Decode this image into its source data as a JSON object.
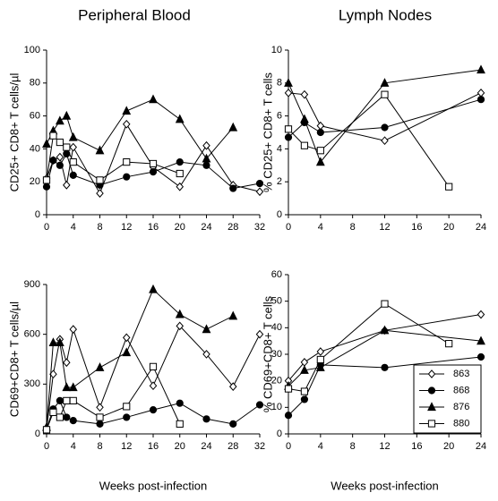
{
  "chart_data": [
    {
      "type": "line",
      "title": "Peripheral Blood",
      "ylabel": "CD25+ CD8+ T cells/µl",
      "xlim": [
        0,
        32
      ],
      "xticks": [
        0,
        4,
        8,
        12,
        16,
        20,
        24,
        28,
        32
      ],
      "ylim": [
        0,
        100
      ],
      "yticks": [
        0,
        20,
        40,
        60,
        80,
        100
      ],
      "series": [
        {
          "name": "863",
          "color": "#000000",
          "marker": "diamond-open",
          "x": [
            0,
            1,
            2,
            3,
            4,
            8,
            12,
            16,
            20,
            24,
            28,
            32
          ],
          "values": [
            22,
            33,
            35,
            18,
            41,
            13,
            55,
            29,
            17,
            42,
            18,
            14
          ]
        },
        {
          "name": "868",
          "color": "#000000",
          "marker": "circle-filled",
          "x": [
            0,
            1,
            2,
            3,
            4,
            8,
            12,
            16,
            20,
            24,
            28,
            32
          ],
          "values": [
            17,
            33,
            30,
            37,
            24,
            18,
            23,
            26,
            32,
            30,
            16,
            19
          ]
        },
        {
          "name": "876",
          "color": "#000000",
          "marker": "triangle-filled",
          "x": [
            0,
            1,
            2,
            3,
            4,
            8,
            12,
            16,
            20,
            24,
            28
          ],
          "values": [
            43,
            51,
            57,
            60,
            47,
            39,
            63,
            70,
            58,
            34,
            53
          ]
        },
        {
          "name": "880",
          "color": "#000000",
          "marker": "square-open",
          "x": [
            0,
            1,
            2,
            3,
            4,
            8,
            12,
            16,
            20
          ],
          "values": [
            21,
            48,
            44,
            41,
            32,
            21,
            32,
            31,
            25
          ]
        }
      ]
    },
    {
      "type": "line",
      "title": "Lymph Nodes",
      "ylabel": "% CD25+ CD8+ T cells",
      "xlim": [
        0,
        24
      ],
      "xticks": [
        0,
        4,
        8,
        12,
        16,
        20,
        24
      ],
      "ylim": [
        0,
        10
      ],
      "yticks": [
        0,
        2,
        4,
        6,
        8,
        10
      ],
      "series": [
        {
          "name": "863",
          "color": "#000000",
          "marker": "diamond-open",
          "x": [
            0,
            2,
            4,
            12,
            24
          ],
          "values": [
            7.4,
            7.3,
            5.4,
            4.5,
            7.4
          ]
        },
        {
          "name": "868",
          "color": "#000000",
          "marker": "circle-filled",
          "x": [
            0,
            2,
            4,
            12,
            24
          ],
          "values": [
            4.7,
            5.6,
            5.0,
            5.3,
            7.0
          ]
        },
        {
          "name": "876",
          "color": "#000000",
          "marker": "triangle-filled",
          "x": [
            0,
            2,
            4,
            12,
            24
          ],
          "values": [
            8.0,
            5.8,
            3.2,
            8.0,
            8.8
          ]
        },
        {
          "name": "880",
          "color": "#000000",
          "marker": "square-open",
          "x": [
            0,
            2,
            4,
            12,
            20
          ],
          "values": [
            5.2,
            4.2,
            3.9,
            7.3,
            1.7
          ]
        }
      ]
    },
    {
      "type": "line",
      "ylabel": "CD69+CD8+ T cells/µl",
      "xlabel": "Weeks post-infection",
      "xlim": [
        0,
        32
      ],
      "xticks": [
        0,
        4,
        8,
        12,
        16,
        20,
        24,
        28,
        32
      ],
      "ylim": [
        0,
        900
      ],
      "yticks": [
        0,
        300,
        600,
        900
      ],
      "series": [
        {
          "name": "863",
          "color": "#000000",
          "marker": "diamond-open",
          "x": [
            0,
            1,
            2,
            3,
            4,
            8,
            12,
            16,
            20,
            24,
            28,
            32
          ],
          "values": [
            30,
            360,
            570,
            430,
            630,
            160,
            580,
            290,
            650,
            480,
            285,
            600
          ]
        },
        {
          "name": "868",
          "color": "#000000",
          "marker": "circle-filled",
          "x": [
            0,
            1,
            2,
            3,
            4,
            8,
            12,
            16,
            20,
            24,
            28,
            32
          ],
          "values": [
            30,
            150,
            200,
            100,
            80,
            60,
            100,
            145,
            185,
            90,
            60,
            175
          ]
        },
        {
          "name": "876",
          "color": "#000000",
          "marker": "triangle-filled",
          "x": [
            0,
            1,
            2,
            3,
            4,
            8,
            12,
            16,
            20,
            24,
            28
          ],
          "values": [
            40,
            550,
            550,
            280,
            280,
            400,
            490,
            870,
            720,
            630,
            710
          ]
        },
        {
          "name": "880",
          "color": "#000000",
          "marker": "square-open",
          "x": [
            0,
            1,
            2,
            3,
            4,
            8,
            12,
            16,
            20
          ],
          "values": [
            25,
            130,
            100,
            200,
            200,
            100,
            165,
            405,
            60
          ]
        }
      ]
    },
    {
      "type": "line",
      "ylabel": "% CD69+CD8+ T cells",
      "xlabel": "Weeks post-infection",
      "xlim": [
        0,
        24
      ],
      "xticks": [
        0,
        4,
        8,
        12,
        16,
        20,
        24
      ],
      "ylim": [
        0,
        60
      ],
      "yticks": [
        0,
        10,
        20,
        30,
        40,
        50,
        60
      ],
      "legend": "lower right",
      "series": [
        {
          "name": "863",
          "color": "#000000",
          "marker": "diamond-open",
          "x": [
            0,
            2,
            4,
            12,
            24
          ],
          "values": [
            20,
            27,
            31,
            39,
            45
          ]
        },
        {
          "name": "868",
          "color": "#000000",
          "marker": "circle-filled",
          "x": [
            0,
            2,
            4,
            12,
            24
          ],
          "values": [
            7,
            13,
            26,
            25,
            29
          ]
        },
        {
          "name": "876",
          "color": "#000000",
          "marker": "triangle-filled",
          "x": [
            0,
            2,
            4,
            12,
            24
          ],
          "values": [
            18,
            24,
            25,
            39,
            35
          ]
        },
        {
          "name": "880",
          "color": "#000000",
          "marker": "square-open",
          "x": [
            0,
            2,
            4,
            12,
            20
          ],
          "values": [
            17,
            16,
            28,
            49,
            34
          ]
        }
      ]
    }
  ]
}
